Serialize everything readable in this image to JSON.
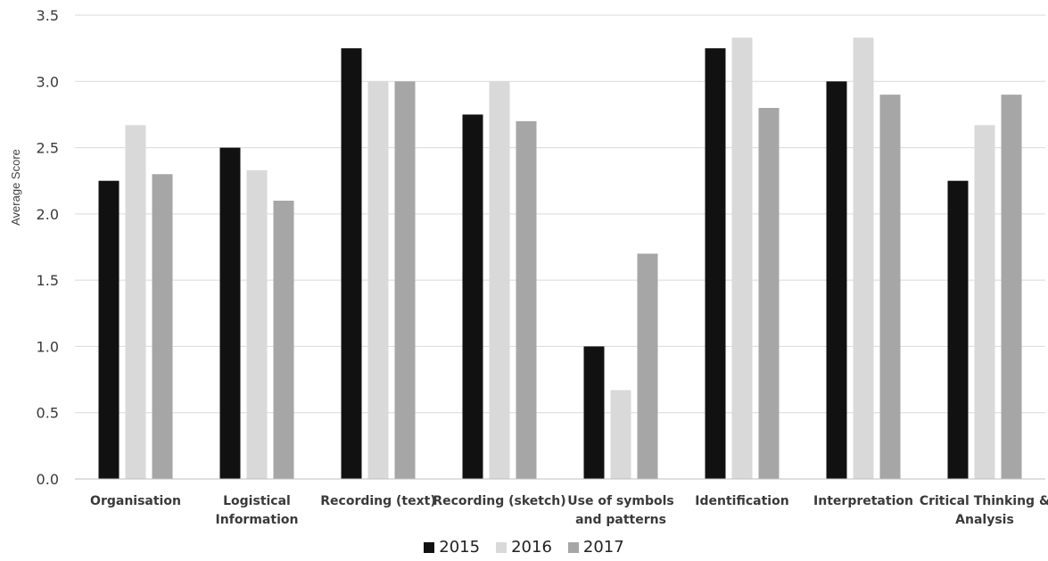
{
  "chart_data": {
    "type": "bar",
    "categories": [
      [
        "Organisation"
      ],
      [
        "Logistical",
        "Information"
      ],
      [
        "Recording (text)"
      ],
      [
        "Recording (sketch)"
      ],
      [
        "Use of symbols",
        "and patterns"
      ],
      [
        "Identification"
      ],
      [
        "Interpretation"
      ],
      [
        "Critical Thinking &",
        "Analysis"
      ]
    ],
    "series": [
      {
        "name": "2015",
        "color": "#111111",
        "values": [
          2.25,
          2.5,
          3.25,
          2.75,
          1.0,
          3.25,
          3.0,
          2.25
        ]
      },
      {
        "name": "2016",
        "color": "#d9d9d9",
        "values": [
          2.67,
          2.33,
          3.0,
          3.0,
          0.67,
          3.33,
          3.33,
          2.67
        ]
      },
      {
        "name": "2017",
        "color": "#a6a6a6",
        "values": [
          2.3,
          2.1,
          3.0,
          2.7,
          1.7,
          2.8,
          2.9,
          2.9
        ]
      }
    ],
    "ylabel": "Average Score",
    "ylim": [
      0,
      3.5
    ],
    "yticks": [
      "0.0",
      "0.5",
      "1.0",
      "1.5",
      "2.0",
      "2.5",
      "3.0",
      "3.5"
    ],
    "grid": true,
    "legend": "bottom"
  }
}
